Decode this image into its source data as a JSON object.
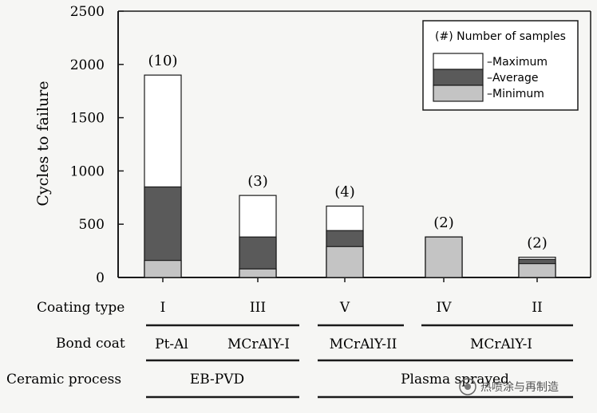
{
  "chart_data": {
    "type": "bar",
    "ylabel": "Cycles to failure",
    "ylim": [
      0,
      2500
    ],
    "yticks": [
      "0",
      "500",
      "1000",
      "1500",
      "2000",
      "2500"
    ],
    "categories": [
      "I",
      "III",
      "V",
      "IV",
      "II"
    ],
    "series": [
      {
        "name": "Minimum",
        "values": [
          160,
          80,
          290,
          380,
          130
        ]
      },
      {
        "name": "Average",
        "values": [
          850,
          380,
          440,
          380,
          170
        ]
      },
      {
        "name": "Maximum",
        "values": [
          1900,
          770,
          670,
          380,
          190
        ]
      }
    ],
    "sample_counts": [
      "(10)",
      "(3)",
      "(4)",
      "(2)",
      "(2)"
    ],
    "legend": {
      "title": "(#) Number of samples",
      "entries": [
        "–Maximum",
        "–Average",
        "–Minimum"
      ],
      "placement": "top-right"
    },
    "rows": {
      "coating_type_label": "Coating type",
      "bond_coat_label": "Bond coat",
      "ceramic_process_label": "Ceramic process"
    },
    "bond_coat_groups": [
      "Pt-Al",
      "MCrAlY-I",
      "MCrAlY-II",
      "MCrAlY-I"
    ],
    "ceramic_process_groups": [
      "EB-PVD",
      "Plasma sprayed"
    ],
    "colors": {
      "maximum": "#ffffff",
      "average": "#5a5a5a",
      "minimum": "#c4c4c4",
      "axis": "#1a1a1a"
    }
  },
  "watermark": "热喷涂与再制造"
}
